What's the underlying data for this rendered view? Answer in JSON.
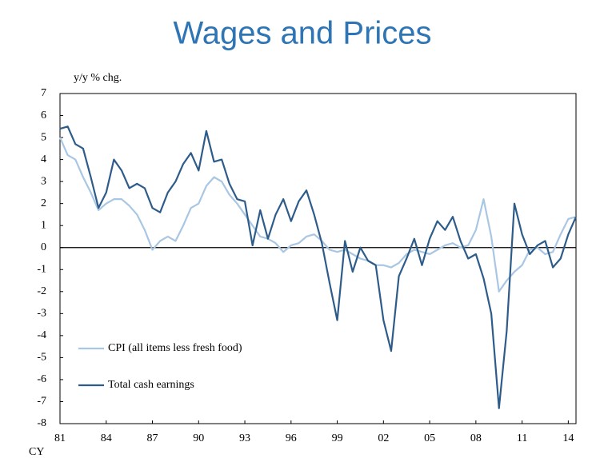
{
  "chart_data": {
    "type": "line",
    "title": "Wages and Prices",
    "y_label": "y/y % chg.",
    "x_label": "CY",
    "x": [
      1981,
      1981.5,
      1982,
      1982.5,
      1983,
      1983.5,
      1984,
      1984.5,
      1985,
      1985.5,
      1986,
      1986.5,
      1987,
      1987.5,
      1988,
      1988.5,
      1989,
      1989.5,
      1990,
      1990.5,
      1991,
      1991.5,
      1992,
      1992.5,
      1993,
      1993.5,
      1994,
      1994.5,
      1995,
      1995.5,
      1996,
      1996.5,
      1997,
      1997.5,
      1998,
      1998.5,
      1999,
      1999.5,
      2000,
      2000.5,
      2001,
      2001.5,
      2002,
      2002.5,
      2003,
      2003.5,
      2004,
      2004.5,
      2005,
      2005.5,
      2006,
      2006.5,
      2007,
      2007.5,
      2008,
      2008.5,
      2009,
      2009.5,
      2010,
      2010.5,
      2011,
      2011.5,
      2012,
      2012.5,
      2013,
      2013.5,
      2014,
      2014.5
    ],
    "series": [
      {
        "name": "CPI (all items less fresh food)",
        "color": "#a9c6e3",
        "values": [
          5.0,
          4.2,
          4.0,
          3.2,
          2.5,
          1.7,
          2.0,
          2.2,
          2.2,
          1.9,
          1.5,
          0.8,
          -0.1,
          0.3,
          0.5,
          0.3,
          1.0,
          1.8,
          2.0,
          2.8,
          3.2,
          3.0,
          2.4,
          2.0,
          1.5,
          1.0,
          0.5,
          0.4,
          0.2,
          -0.2,
          0.1,
          0.2,
          0.5,
          0.6,
          0.3,
          -0.1,
          -0.2,
          -0.1,
          -0.3,
          -0.5,
          -0.6,
          -0.8,
          -0.8,
          -0.9,
          -0.7,
          -0.3,
          -0.1,
          -0.2,
          -0.3,
          -0.1,
          0.1,
          0.2,
          0.0,
          0.1,
          0.8,
          2.2,
          0.5,
          -2.0,
          -1.5,
          -1.1,
          -0.8,
          -0.1,
          0.0,
          -0.3,
          -0.2,
          0.6,
          1.3,
          1.4
        ]
      },
      {
        "name": "Total cash earnings",
        "color": "#2e5c8a",
        "values": [
          5.4,
          5.5,
          4.7,
          4.5,
          3.2,
          1.8,
          2.5,
          4.0,
          3.5,
          2.7,
          2.9,
          2.7,
          1.8,
          1.6,
          2.5,
          3.0,
          3.8,
          4.3,
          3.5,
          5.3,
          3.9,
          4.0,
          2.9,
          2.2,
          2.1,
          0.1,
          1.7,
          0.4,
          1.5,
          2.2,
          1.2,
          2.1,
          2.6,
          1.5,
          0.2,
          -1.6,
          -3.3,
          0.3,
          -1.1,
          0.0,
          -0.6,
          -0.8,
          -3.3,
          -4.7,
          -1.3,
          -0.5,
          0.4,
          -0.8,
          0.4,
          1.2,
          0.8,
          1.4,
          0.3,
          -0.5,
          -0.3,
          -1.4,
          -3.0,
          -7.3,
          -3.8,
          2.0,
          0.6,
          -0.3,
          0.1,
          0.3,
          -0.9,
          -0.5,
          0.6,
          1.4
        ]
      }
    ],
    "xlim": [
      1981,
      2014.5
    ],
    "xticks": [
      {
        "value": 1981,
        "label": "81"
      },
      {
        "value": 1984,
        "label": "84"
      },
      {
        "value": 1987,
        "label": "87"
      },
      {
        "value": 1990,
        "label": "90"
      },
      {
        "value": 1993,
        "label": "93"
      },
      {
        "value": 1996,
        "label": "96"
      },
      {
        "value": 1999,
        "label": "99"
      },
      {
        "value": 2002,
        "label": "02"
      },
      {
        "value": 2005,
        "label": "05"
      },
      {
        "value": 2008,
        "label": "08"
      },
      {
        "value": 2011,
        "label": "11"
      },
      {
        "value": 2014,
        "label": "14"
      }
    ],
    "ylim": [
      -8,
      7
    ],
    "yticks": [
      -8,
      -7,
      -6,
      -5,
      -4,
      -3,
      -2,
      -1,
      0,
      1,
      2,
      3,
      4,
      5,
      6,
      7
    ],
    "zero_line": true,
    "legend": "lower left"
  }
}
